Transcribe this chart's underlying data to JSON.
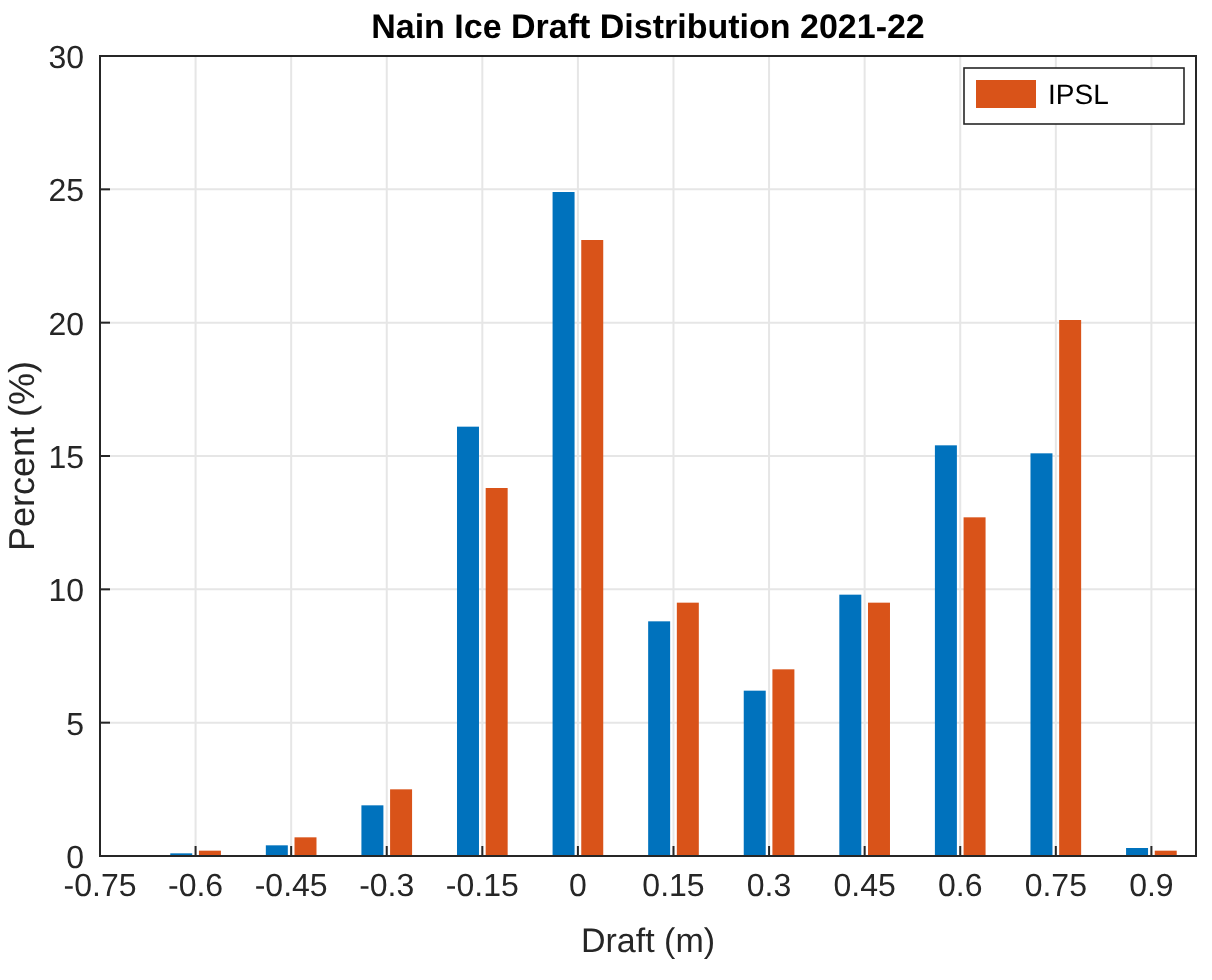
{
  "chart_data": {
    "type": "bar",
    "title": "Nain Ice Draft Distribution 2021-22",
    "xlabel": "Draft (m)",
    "ylabel": "Percent (%)",
    "x": [
      -0.6,
      -0.45,
      -0.3,
      -0.15,
      0,
      0.15,
      0.3,
      0.45,
      0.6,
      0.75,
      0.9
    ],
    "series": [
      {
        "color": "#0072bd",
        "values": [
          0.1,
          0.4,
          1.9,
          16.1,
          24.9,
          8.8,
          6.2,
          9.8,
          15.4,
          15.1,
          0.3
        ]
      },
      {
        "name": "IPSL",
        "color": "#d95319",
        "values": [
          0.2,
          0.7,
          2.5,
          13.8,
          23.1,
          9.5,
          7.0,
          9.5,
          12.7,
          20.1,
          0.2
        ]
      }
    ],
    "xlim": [
      -0.75,
      0.97
    ],
    "xticks": [
      -0.75,
      -0.6,
      -0.45,
      -0.3,
      -0.15,
      0,
      0.15,
      0.3,
      0.45,
      0.6,
      0.75,
      0.9
    ],
    "ylim": [
      0,
      30
    ],
    "yticks": [
      0,
      5,
      10,
      15,
      20,
      25,
      30
    ],
    "grid": true,
    "legend": "top right"
  }
}
